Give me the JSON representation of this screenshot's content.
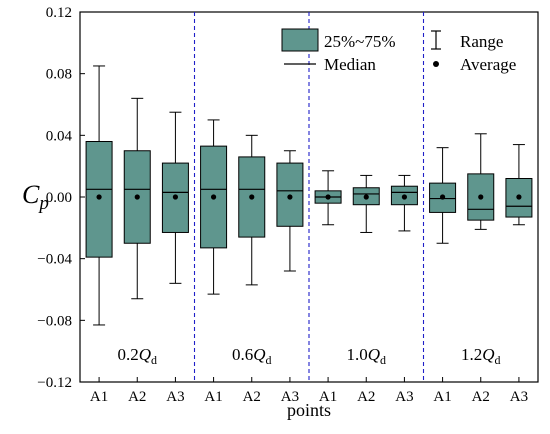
{
  "chart_data": {
    "type": "box",
    "ylabel": "C",
    "ylabel_sub": "p",
    "xlabel": "points",
    "ylim": [
      -0.12,
      0.12
    ],
    "yticks": [
      -0.12,
      -0.08,
      -0.04,
      0.0,
      0.04,
      0.08,
      0.12
    ],
    "ytick_labels": [
      "−0.12",
      "−0.08",
      "−0.04",
      "0.00",
      "0.04",
      "0.08",
      "0.12"
    ],
    "categories": [
      "A1",
      "A2",
      "A3",
      "A1",
      "A2",
      "A3",
      "A1",
      "A2",
      "A3",
      "A1",
      "A2",
      "A3"
    ],
    "groups": [
      {
        "label": "0.2",
        "sym": "Q",
        "sub": "d"
      },
      {
        "label": "0.6",
        "sym": "Q",
        "sub": "d"
      },
      {
        "label": "1.0",
        "sym": "Q",
        "sub": "d"
      },
      {
        "label": "1.2",
        "sym": "Q",
        "sub": "d"
      }
    ],
    "boxes": [
      {
        "min": -0.083,
        "q1": -0.039,
        "median": 0.005,
        "q3": 0.036,
        "max": 0.085,
        "mean": 0.0
      },
      {
        "min": -0.066,
        "q1": -0.03,
        "median": 0.005,
        "q3": 0.03,
        "max": 0.064,
        "mean": 0.0
      },
      {
        "min": -0.056,
        "q1": -0.023,
        "median": 0.003,
        "q3": 0.022,
        "max": 0.055,
        "mean": 0.0
      },
      {
        "min": -0.063,
        "q1": -0.033,
        "median": 0.005,
        "q3": 0.033,
        "max": 0.05,
        "mean": 0.0
      },
      {
        "min": -0.057,
        "q1": -0.026,
        "median": 0.005,
        "q3": 0.026,
        "max": 0.04,
        "mean": 0.0
      },
      {
        "min": -0.048,
        "q1": -0.019,
        "median": 0.004,
        "q3": 0.022,
        "max": 0.03,
        "mean": 0.0
      },
      {
        "min": -0.018,
        "q1": -0.004,
        "median": 0.0,
        "q3": 0.004,
        "max": 0.017,
        "mean": 0.0
      },
      {
        "min": -0.023,
        "q1": -0.005,
        "median": 0.002,
        "q3": 0.006,
        "max": 0.014,
        "mean": 0.0
      },
      {
        "min": -0.022,
        "q1": -0.005,
        "median": 0.003,
        "q3": 0.007,
        "max": 0.014,
        "mean": 0.0
      },
      {
        "min": -0.03,
        "q1": -0.01,
        "median": -0.001,
        "q3": 0.009,
        "max": 0.032,
        "mean": 0.0
      },
      {
        "min": -0.021,
        "q1": -0.015,
        "median": -0.008,
        "q3": 0.015,
        "max": 0.041,
        "mean": 0.0
      },
      {
        "min": -0.018,
        "q1": -0.013,
        "median": -0.006,
        "q3": 0.012,
        "max": 0.034,
        "mean": 0.0
      }
    ],
    "legend": {
      "box": "25%~75%",
      "range": "Range",
      "median": "Median",
      "average": "Average"
    },
    "legend_placement": "top-right",
    "grid": false,
    "colors": {
      "box_fill": "#5f968e",
      "separator": "#1f1fc8",
      "ink": "#000000"
    }
  }
}
